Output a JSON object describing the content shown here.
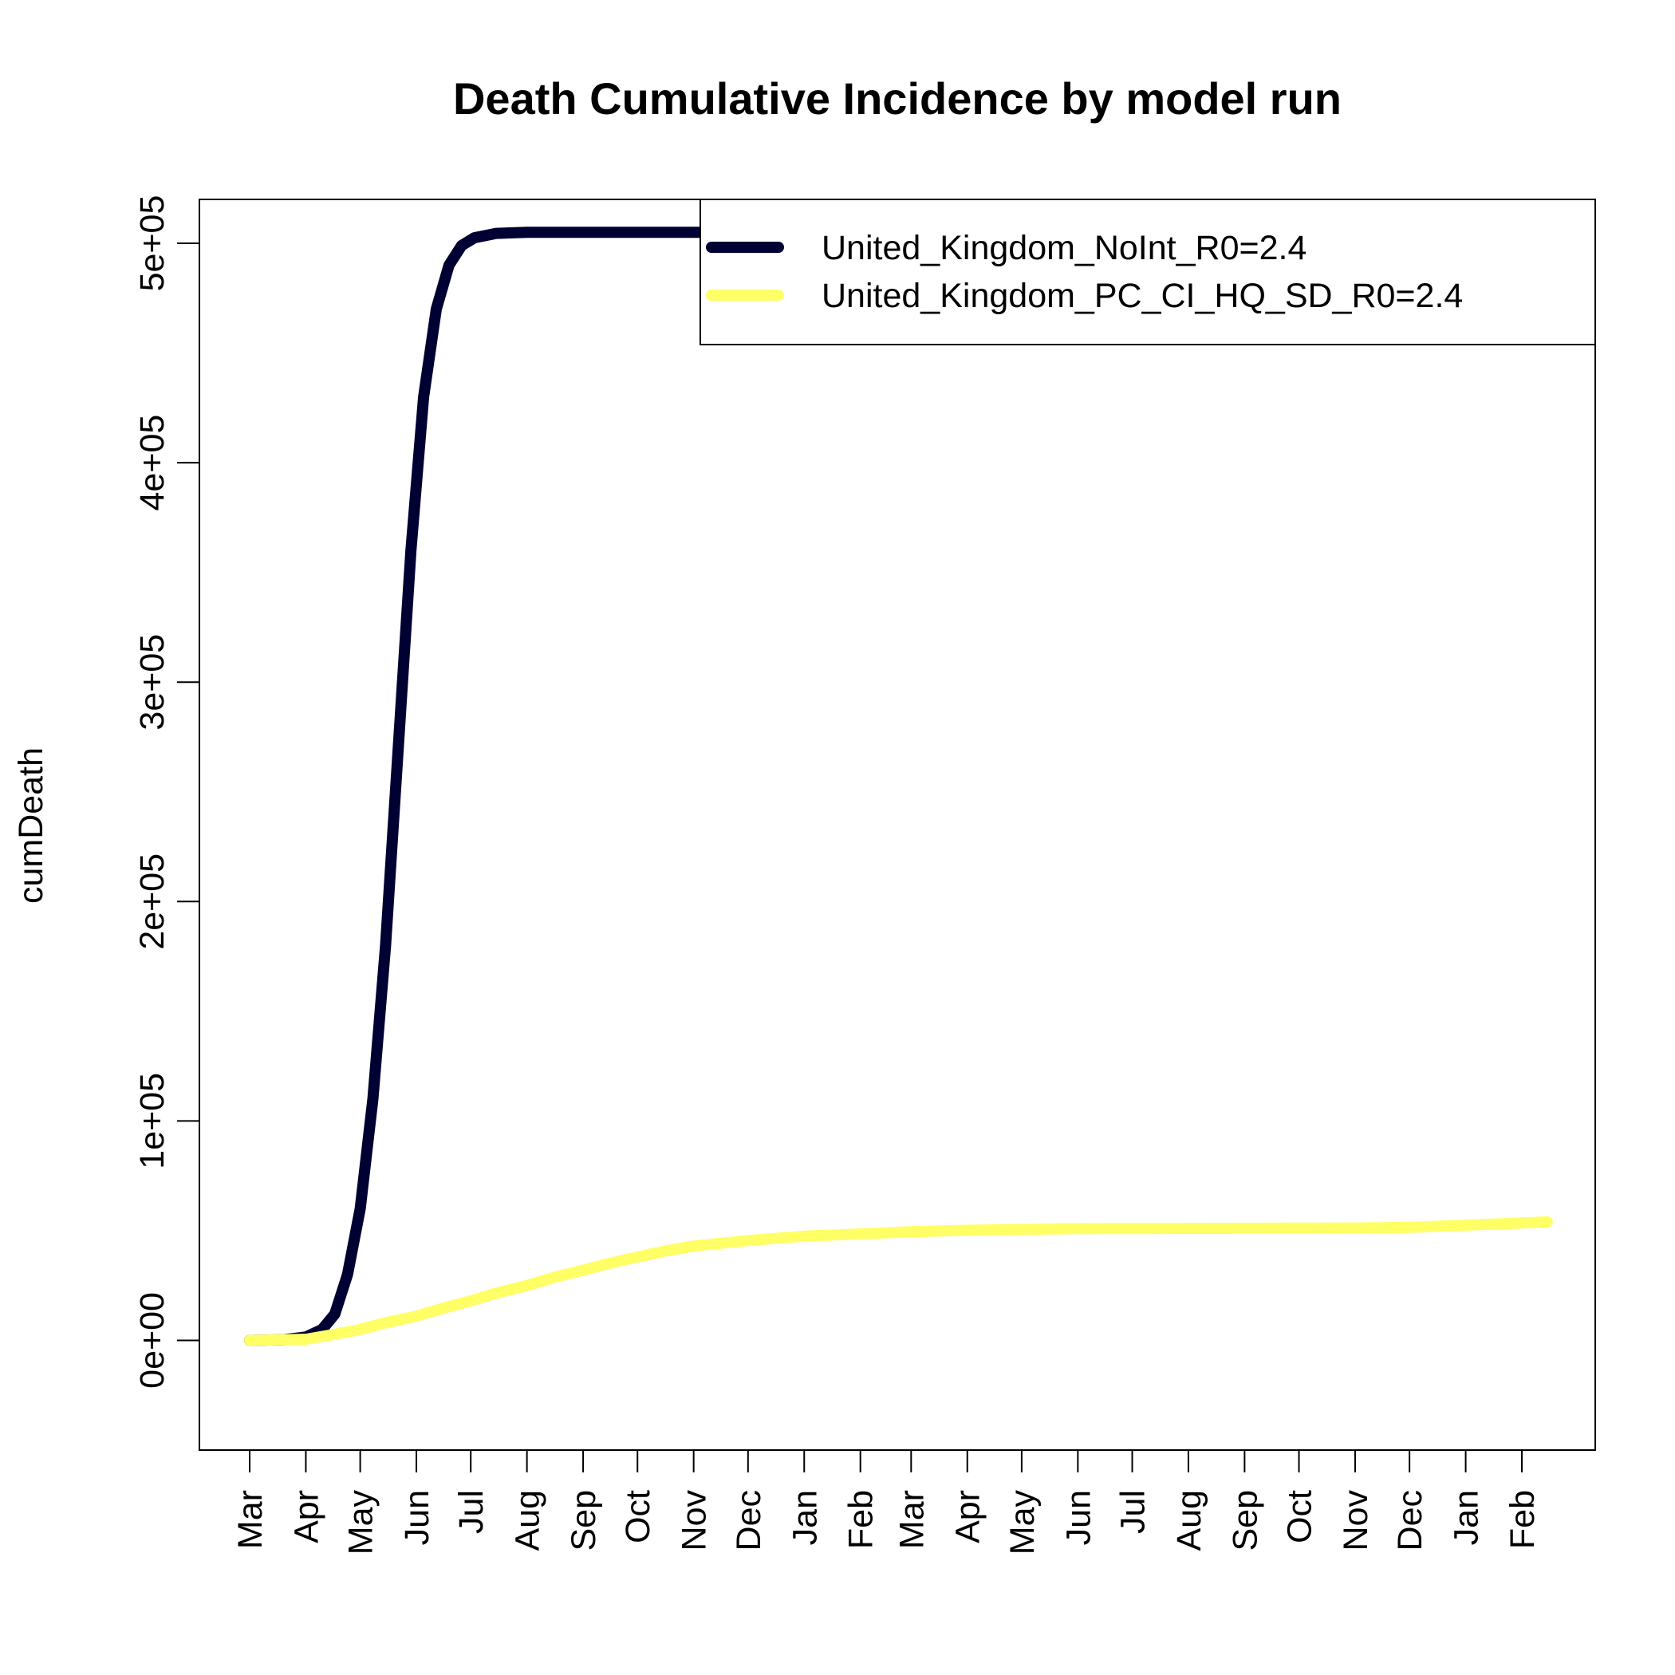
{
  "chart_data": {
    "type": "line",
    "title": "Death Cumulative Incidence by model run",
    "xlabel": "",
    "ylabel": "cumDeath",
    "ylim": [
      -50000,
      520000
    ],
    "yticks": [
      0,
      100000,
      200000,
      300000,
      400000,
      500000
    ],
    "ytick_labels": [
      "0e+00",
      "1e+05",
      "2e+05",
      "3e+05",
      "4e+05",
      "5e+05"
    ],
    "x_range": [
      "2020-03-01",
      "2022-03-01"
    ],
    "xticks": [
      "2020-03-01",
      "2020-04-01",
      "2020-05-01",
      "2020-06-01",
      "2020-07-01",
      "2020-08-01",
      "2020-09-01",
      "2020-10-01",
      "2020-11-01",
      "2020-12-01",
      "2021-01-01",
      "2021-02-01",
      "2021-03-01",
      "2021-04-01",
      "2021-05-01",
      "2021-06-01",
      "2021-07-01",
      "2021-08-01",
      "2021-09-01",
      "2021-10-01",
      "2021-11-01",
      "2021-12-01",
      "2022-01-01",
      "2022-02-01"
    ],
    "xtick_labels": [
      "Mar",
      "Apr",
      "May",
      "Jun",
      "Jul",
      "Aug",
      "Sep",
      "Oct",
      "Nov",
      "Dec",
      "Jan",
      "Feb",
      "Mar",
      "Apr",
      "May",
      "Jun",
      "Jul",
      "Aug",
      "Sep",
      "Oct",
      "Nov",
      "Dec",
      "Jan",
      "Feb"
    ],
    "grid": false,
    "legend_position": "top-right",
    "series": [
      {
        "name": "United_Kingdom_NoInt_R0=2.4",
        "color": "#000033",
        "points": [
          [
            "2020-03-01",
            0
          ],
          [
            "2020-03-20",
            300
          ],
          [
            "2020-04-01",
            1500
          ],
          [
            "2020-04-10",
            5000
          ],
          [
            "2020-04-17",
            12000
          ],
          [
            "2020-04-24",
            30000
          ],
          [
            "2020-05-01",
            60000
          ],
          [
            "2020-05-08",
            110000
          ],
          [
            "2020-05-15",
            180000
          ],
          [
            "2020-05-22",
            270000
          ],
          [
            "2020-05-29",
            360000
          ],
          [
            "2020-06-05",
            430000
          ],
          [
            "2020-06-12",
            470000
          ],
          [
            "2020-06-19",
            490000
          ],
          [
            "2020-06-26",
            499000
          ],
          [
            "2020-07-03",
            502500
          ],
          [
            "2020-07-15",
            504500
          ],
          [
            "2020-08-01",
            505000
          ],
          [
            "2020-09-01",
            505000
          ],
          [
            "2020-10-01",
            505000
          ],
          [
            "2020-11-01",
            505000
          ],
          [
            "2020-11-20",
            505000
          ]
        ]
      },
      {
        "name": "United_Kingdom_PC_CI_HQ_SD_R0=2.4",
        "color": "#FFFF66",
        "points": [
          [
            "2020-03-01",
            0
          ],
          [
            "2020-04-01",
            500
          ],
          [
            "2020-04-15",
            2500
          ],
          [
            "2020-05-01",
            5000
          ],
          [
            "2020-05-15",
            8000
          ],
          [
            "2020-06-01",
            11000
          ],
          [
            "2020-06-15",
            14500
          ],
          [
            "2020-07-01",
            18000
          ],
          [
            "2020-07-15",
            21500
          ],
          [
            "2020-08-01",
            25000
          ],
          [
            "2020-08-15",
            28500
          ],
          [
            "2020-09-01",
            32000
          ],
          [
            "2020-09-15",
            35000
          ],
          [
            "2020-10-01",
            38000
          ],
          [
            "2020-10-15",
            40500
          ],
          [
            "2020-11-01",
            43000
          ],
          [
            "2020-12-01",
            45500
          ],
          [
            "2021-01-01",
            47500
          ],
          [
            "2021-02-01",
            48500
          ],
          [
            "2021-03-01",
            49500
          ],
          [
            "2021-04-01",
            50200
          ],
          [
            "2021-05-01",
            50600
          ],
          [
            "2021-06-01",
            50900
          ],
          [
            "2021-07-01",
            51000
          ],
          [
            "2021-09-01",
            51100
          ],
          [
            "2021-11-01",
            51200
          ],
          [
            "2021-12-01",
            51500
          ],
          [
            "2022-01-01",
            52500
          ],
          [
            "2022-02-01",
            53500
          ],
          [
            "2022-02-15",
            54000
          ]
        ]
      }
    ]
  }
}
